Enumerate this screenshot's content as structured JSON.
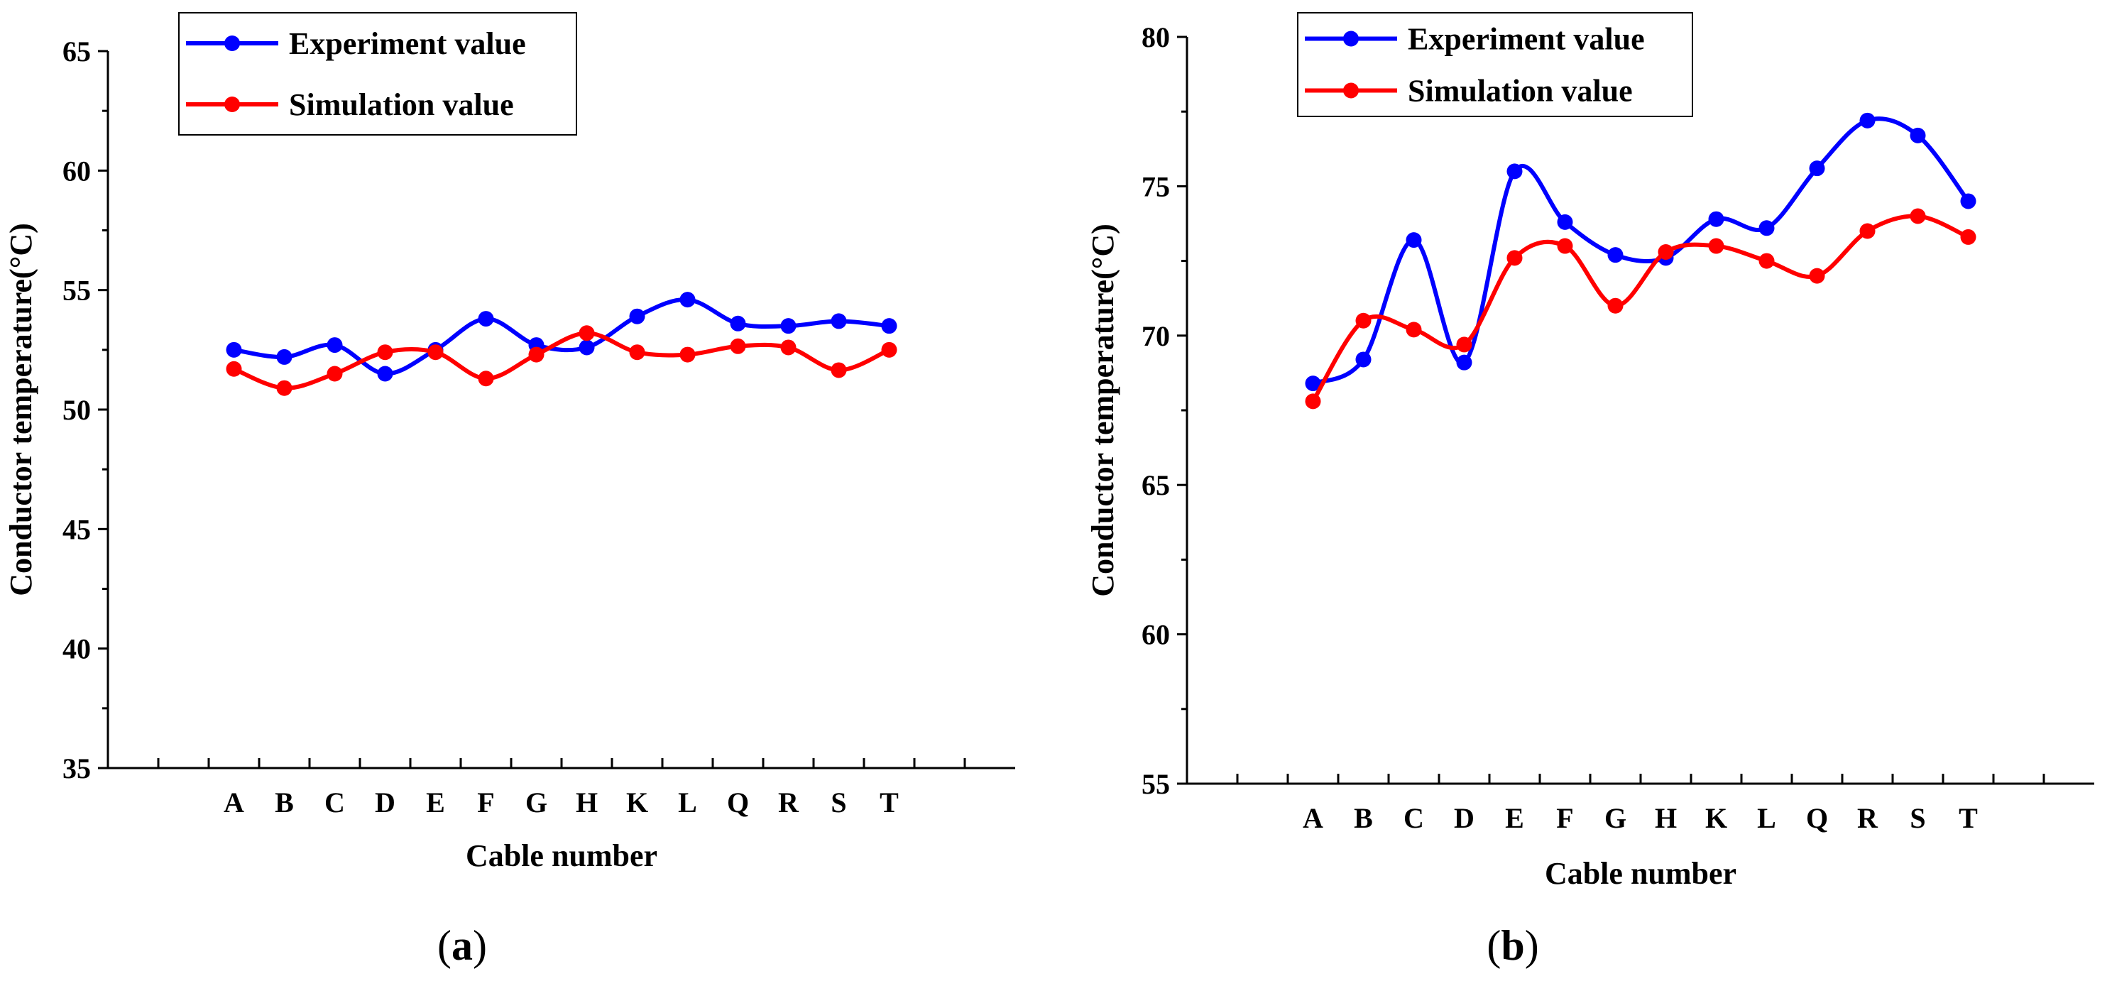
{
  "chart_data": [
    {
      "type": "line",
      "panel_label": "(a)",
      "panel_letter": "a",
      "xlabel": "Cable number",
      "ylabel": "Conductor temperature(°C)",
      "categories": [
        "A",
        "B",
        "C",
        "D",
        "E",
        "F",
        "G",
        "H",
        "K",
        "L",
        "Q",
        "R",
        "S",
        "T"
      ],
      "ylim": [
        35,
        65
      ],
      "yticks": [
        35,
        40,
        45,
        50,
        55,
        60,
        65
      ],
      "series": [
        {
          "name": "Experiment value",
          "color": "#0000ff",
          "values": [
            52.5,
            52.2,
            52.7,
            51.5,
            52.5,
            53.8,
            52.7,
            52.6,
            53.9,
            54.6,
            53.6,
            53.5,
            53.7,
            53.5
          ]
        },
        {
          "name": "Simulation value",
          "color": "#ff0000",
          "values": [
            51.7,
            50.9,
            51.5,
            52.4,
            52.4,
            51.3,
            52.3,
            53.2,
            52.4,
            52.3,
            52.65,
            52.6,
            51.65,
            52.5
          ]
        }
      ],
      "legend": "top-left"
    },
    {
      "type": "line",
      "panel_label": "(b)",
      "panel_letter": "b",
      "xlabel": "Cable number",
      "ylabel": "Conductor temperature(°C)",
      "categories": [
        "A",
        "B",
        "C",
        "D",
        "E",
        "F",
        "G",
        "H",
        "K",
        "L",
        "Q",
        "R",
        "S",
        "T"
      ],
      "ylim": [
        55,
        80
      ],
      "yticks": [
        55,
        60,
        65,
        70,
        75,
        80
      ],
      "series": [
        {
          "name": "Experiment value",
          "color": "#0000ff",
          "values": [
            68.4,
            69.2,
            73.2,
            69.1,
            75.5,
            73.8,
            72.7,
            72.6,
            73.9,
            73.6,
            75.6,
            77.2,
            76.7,
            74.5
          ]
        },
        {
          "name": "Simulation value",
          "color": "#ff0000",
          "values": [
            67.8,
            70.5,
            70.2,
            69.7,
            72.6,
            73.0,
            71.0,
            72.8,
            73.0,
            72.5,
            72.0,
            73.5,
            74.0,
            73.3
          ]
        }
      ],
      "legend": "top-left"
    }
  ]
}
